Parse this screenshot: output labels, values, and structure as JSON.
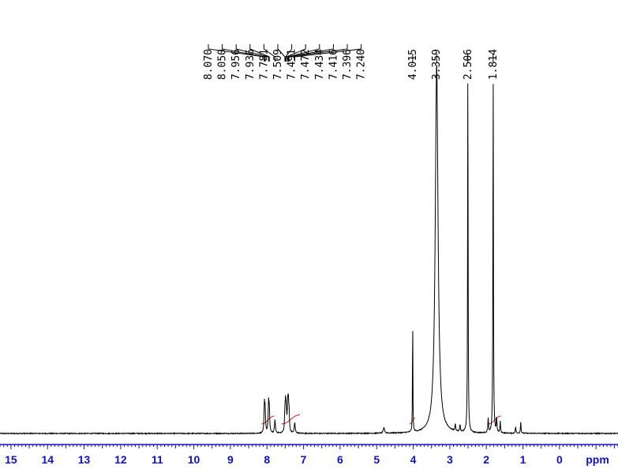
{
  "chart_data": {
    "type": "line",
    "x_unit": "ppm",
    "x_ticks": [
      "15",
      "14",
      "13",
      "12",
      "11",
      "10",
      "9",
      "8",
      "7",
      "6",
      "5",
      "4",
      "3",
      "2",
      "1",
      "0"
    ],
    "xlim": [
      15.3,
      -1.6
    ],
    "ylim": [
      0,
      100
    ],
    "peak_labels_aromatic": [
      "8.070",
      "8.050",
      "7.956",
      "7.936",
      "7.781",
      "7.509",
      "7.491",
      "7.472",
      "7.434",
      "7.416",
      "7.396",
      "7.240"
    ],
    "peak_labels_aliphatic": [
      "4.015",
      "3.359",
      "2.506",
      "1.814"
    ],
    "peaks": [
      {
        "x": 8.07,
        "height": 7.5,
        "width": 0.012
      },
      {
        "x": 8.05,
        "height": 6.0,
        "width": 0.012
      },
      {
        "x": 7.956,
        "height": 7.8,
        "width": 0.012
      },
      {
        "x": 7.936,
        "height": 6.2,
        "width": 0.012
      },
      {
        "x": 7.781,
        "height": 3.5,
        "width": 0.015
      },
      {
        "x": 7.509,
        "height": 5.0,
        "width": 0.012
      },
      {
        "x": 7.491,
        "height": 7.0,
        "width": 0.012
      },
      {
        "x": 7.472,
        "height": 4.8,
        "width": 0.012
      },
      {
        "x": 7.434,
        "height": 6.5,
        "width": 0.012
      },
      {
        "x": 7.416,
        "height": 7.2,
        "width": 0.012
      },
      {
        "x": 7.396,
        "height": 5.0,
        "width": 0.012
      },
      {
        "x": 7.24,
        "height": 2.8,
        "width": 0.015
      },
      {
        "x": 4.8,
        "height": 1.5,
        "width": 0.02
      },
      {
        "x": 4.015,
        "height": 34.0,
        "width": 0.006
      },
      {
        "x": 3.359,
        "height": 100.0,
        "width": 0.045
      },
      {
        "x": 2.85,
        "height": 2.0,
        "width": 0.01
      },
      {
        "x": 2.72,
        "height": 2.0,
        "width": 0.01
      },
      {
        "x": 2.506,
        "height": 100.0,
        "width": 0.008
      },
      {
        "x": 1.95,
        "height": 4.0,
        "width": 0.01
      },
      {
        "x": 1.814,
        "height": 100.0,
        "width": 0.008
      },
      {
        "x": 1.72,
        "height": 4.0,
        "width": 0.01
      },
      {
        "x": 1.62,
        "height": 3.0,
        "width": 0.01
      },
      {
        "x": 1.2,
        "height": 1.8,
        "width": 0.01
      },
      {
        "x": 1.06,
        "height": 3.0,
        "width": 0.01
      }
    ],
    "integrals": [
      {
        "from": 8.15,
        "to": 7.8
      },
      {
        "from": 7.6,
        "to": 7.1
      },
      {
        "from": 4.1,
        "to": 3.95
      },
      {
        "from": 1.95,
        "to": 1.6
      }
    ],
    "colors": {
      "trace": "#000000",
      "integral": "#e02020",
      "axis": "#1010c8",
      "label_line": "#000000"
    }
  }
}
